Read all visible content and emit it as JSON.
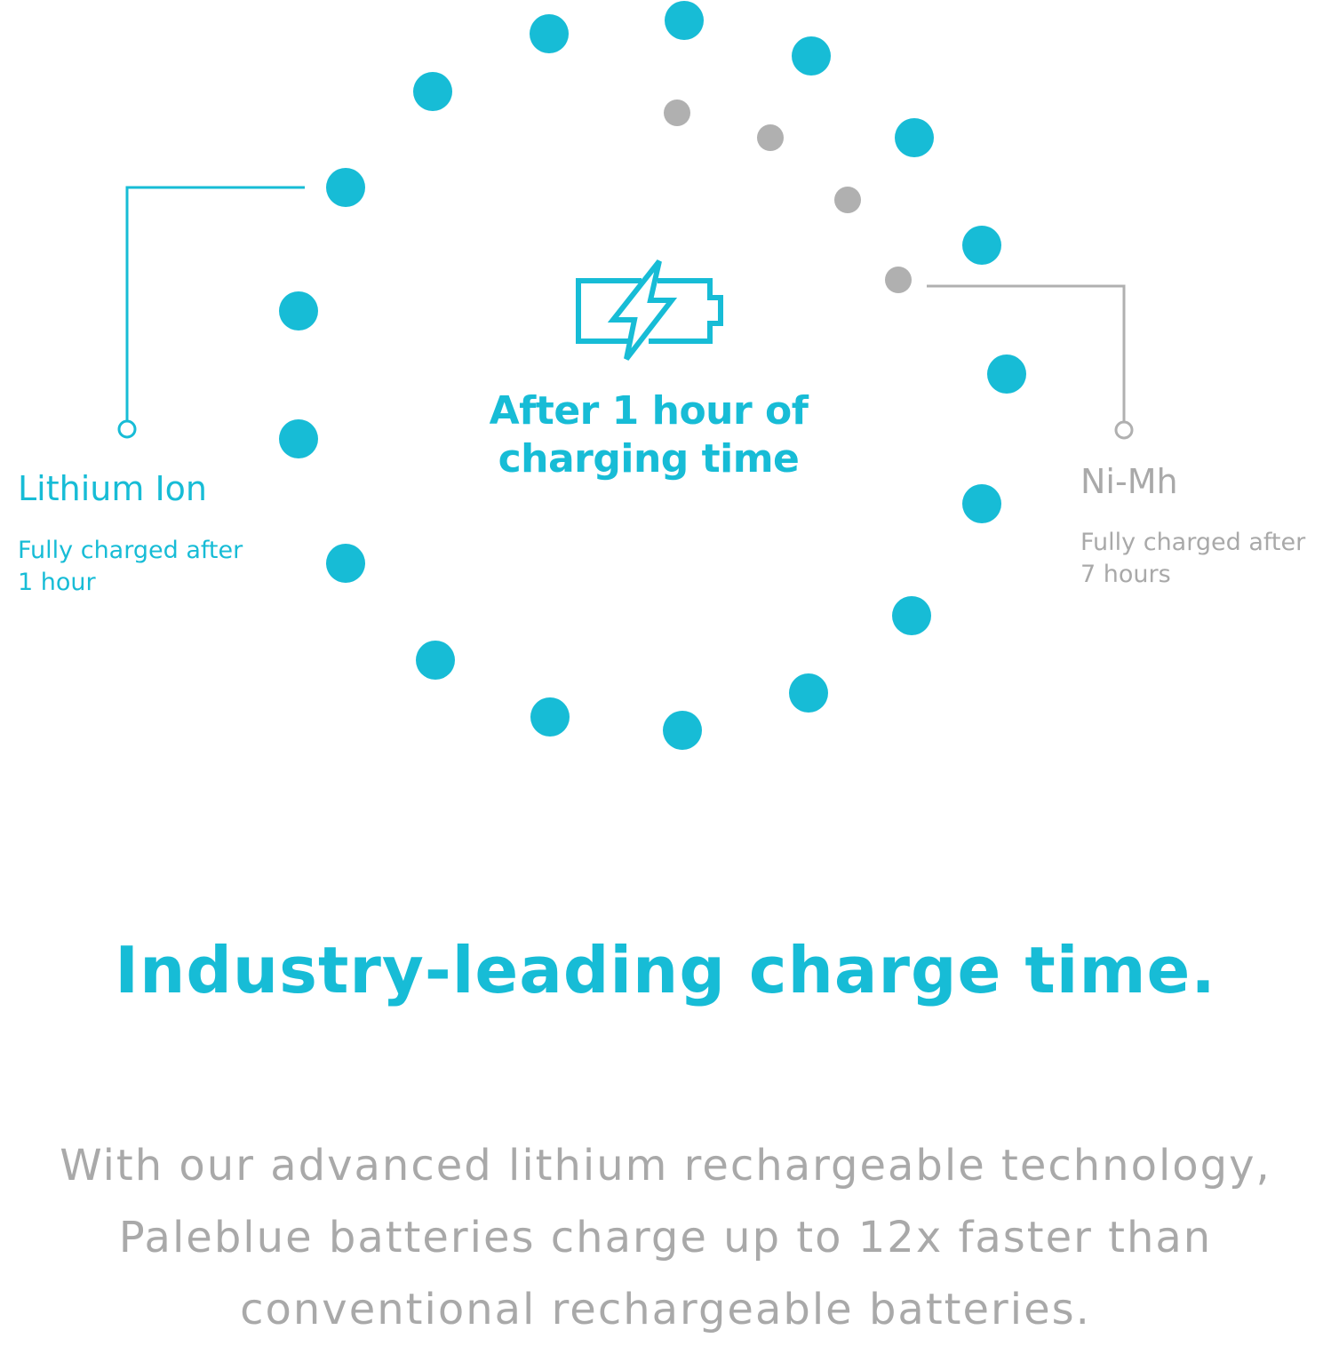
{
  "colors": {
    "accent": "#17bcd6",
    "muted": "#b0b0b0",
    "text_muted": "#a9a9a9"
  },
  "dial": {
    "total_dots": 21,
    "filled_dots_lithium": 17,
    "remaining_dots_nimh": 4
  },
  "icon": "battery-charging-icon",
  "center_caption": {
    "line1": "After 1 hour of",
    "line2": "charging time"
  },
  "lithium": {
    "title": "Lithium Ion",
    "sub1": "Fully charged after",
    "sub2": "1 hour"
  },
  "nimh": {
    "title": "Ni-Mh",
    "sub1": "Fully charged after",
    "sub2": "7 hours"
  },
  "headline": "Industry-leading charge time.",
  "body": {
    "line1": "With our advanced lithium rechargeable technology,",
    "line2": "Paleblue batteries charge up to 12x faster than",
    "line3": "conventional rechargeable batteries."
  }
}
